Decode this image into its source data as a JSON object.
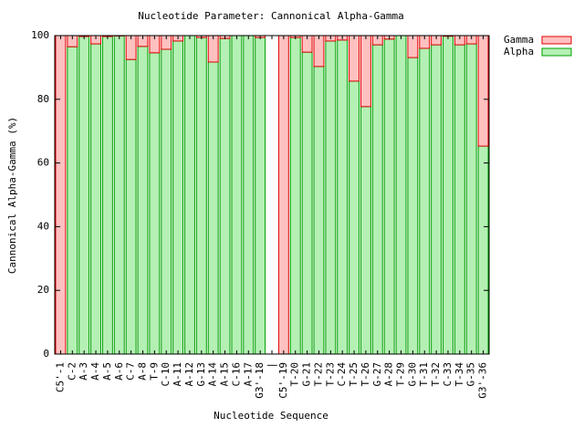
{
  "chart_data": {
    "type": "stacked_bar",
    "title": "Nucleotide Parameter: Cannonical Alpha-Gamma",
    "x_label": "Nucleotide Sequence",
    "y_label": "Cannonical Alpha-Gamma (%)",
    "categories": [
      "C5'-1",
      "C-2",
      "A-3",
      "A-4",
      "A-5",
      "A-6",
      "C-7",
      "A-8",
      "T-9",
      "C-10",
      "A-11",
      "A-12",
      "G-13",
      "A-14",
      "A-15",
      "C-16",
      "A-17",
      "G3'-18",
      "|",
      "C5'-19",
      "T-20",
      "G-21",
      "T-22",
      "T-23",
      "C-24",
      "T-25",
      "T-26",
      "G-27",
      "A-28",
      "T-29",
      "G-30",
      "T-31",
      "T-32",
      "C-33",
      "T-34",
      "G-35",
      "G3'-36"
    ],
    "series": [
      {
        "name": "Alpha",
        "color": "#b4f0b4",
        "edge": "#00a000",
        "values": [
          0,
          96.5,
          99.7,
          97.4,
          99.7,
          99.9,
          92.5,
          96.6,
          94.6,
          95.7,
          98.3,
          100,
          99.4,
          91.7,
          99.1,
          100,
          100,
          99.4,
          null,
          0,
          99.4,
          94.8,
          90.3,
          98.3,
          98.6,
          85.7,
          77.7,
          97.1,
          98.9,
          100,
          93.1,
          96.0,
          97.1,
          99.8,
          97.1,
          97.4,
          65.3
        ]
      },
      {
        "name": "Gamma",
        "color": "#ffc0c0",
        "edge": "#e00000",
        "values": [
          100,
          3.5,
          0.3,
          2.6,
          0.3,
          0.1,
          7.5,
          3.4,
          5.4,
          4.3,
          1.7,
          0,
          0.6,
          8.3,
          0.9,
          0,
          0,
          0.6,
          null,
          100,
          0.6,
          5.2,
          9.7,
          1.7,
          1.4,
          14.3,
          22.3,
          2.9,
          1.1,
          0,
          6.9,
          4.0,
          2.9,
          0.2,
          2.9,
          2.6,
          34.7
        ]
      }
    ],
    "ylim": [
      0,
      100
    ],
    "yticks": [
      0,
      20,
      40,
      60,
      80,
      100
    ],
    "legend": "outside-top-right"
  }
}
